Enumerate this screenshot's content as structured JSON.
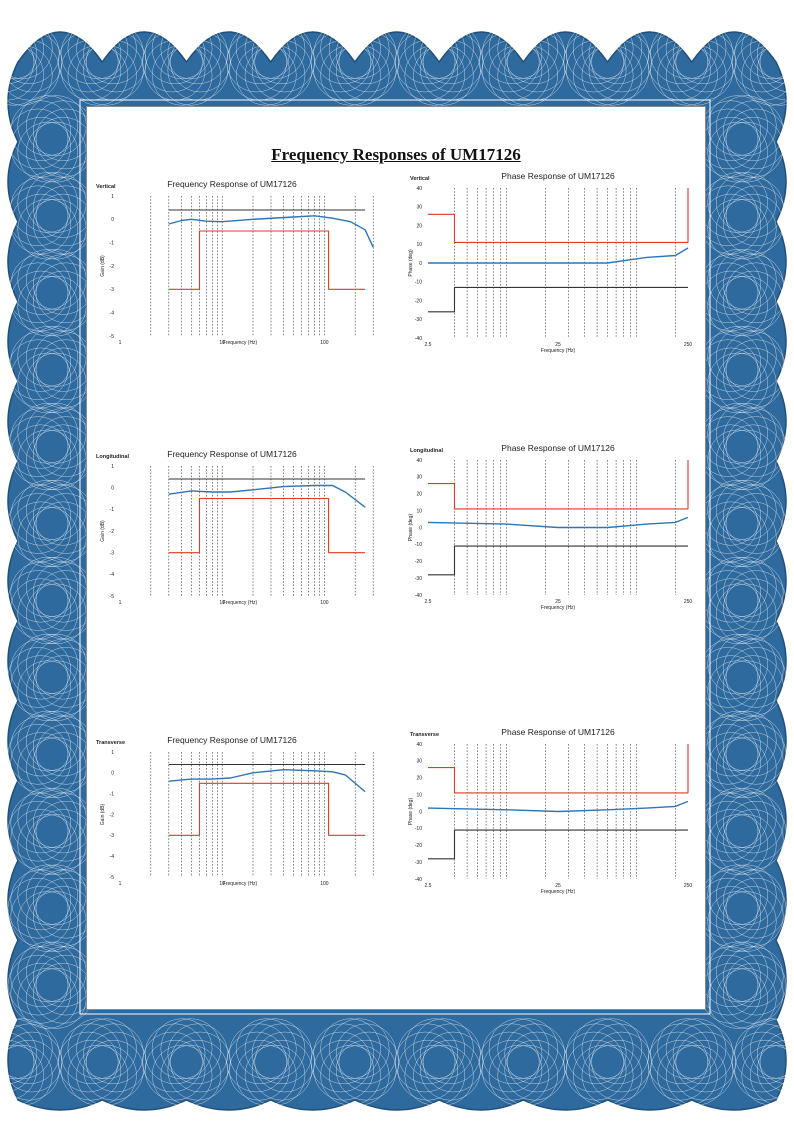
{
  "document": {
    "title": "Frequency Responses of UM17126",
    "footer_note": "",
    "colors": {
      "border": "#2f6a9e",
      "guilloche": "#ffffff",
      "measured": "#2e75b6",
      "upper_limit": "#e03a24",
      "lower_limit": "#333333"
    }
  },
  "chart_data": [
    {
      "type": "line",
      "orientation": "Vertical",
      "title": "Frequency Response of UM17126",
      "xlabel": "Frequency (Hz)",
      "ylabel": "Gain (dB)",
      "xscale": "log",
      "xlim": [
        1,
        350
      ],
      "ylim": [
        -5,
        1
      ],
      "xticks": [
        1,
        10,
        100
      ],
      "yticks": [
        1,
        0,
        -1,
        -2,
        -3,
        -4,
        -5
      ],
      "grid": "vertical dashed lines at 1-2-3...-9 decade steps",
      "series": [
        {
          "color": "#2e75b6",
          "x": [
            3,
            4,
            5,
            7,
            10,
            20,
            50,
            80,
            120,
            180,
            250,
            300
          ],
          "y": [
            -0.2,
            -0.05,
            0.0,
            -0.08,
            -0.1,
            0.0,
            0.1,
            0.15,
            0.05,
            -0.1,
            -0.45,
            -1.2
          ]
        },
        {
          "color": "#333333",
          "x": [
            3,
            250
          ],
          "y": [
            0.4,
            0.4
          ]
        },
        {
          "color": "#e03a24",
          "x": [
            3,
            6,
            6,
            110,
            110,
            250
          ],
          "y": [
            -3,
            -3,
            -0.5,
            -0.5,
            -3,
            -3
          ]
        }
      ]
    },
    {
      "type": "line",
      "orientation": "Vertical",
      "title": "Phase Response of UM17126",
      "xlabel": "Frequency (Hz)",
      "ylabel": "Phase (deg)",
      "xscale": "log",
      "xlim": [
        2.5,
        250
      ],
      "ylim": [
        -40,
        40
      ],
      "xticks": [
        2.5,
        25,
        250
      ],
      "yticks": [
        40,
        30,
        20,
        10,
        0,
        -10,
        -20,
        -30,
        -40
      ],
      "grid": "vertical dashed lines at 1-2-3...-9 decade steps",
      "series": [
        {
          "color": "#2e75b6",
          "x": [
            2.5,
            10,
            25,
            60,
            120,
            200,
            250
          ],
          "y": [
            0,
            0,
            0,
            0,
            3,
            4,
            8
          ]
        },
        {
          "color": "#e03a24",
          "x": [
            2.5,
            4,
            4,
            250,
            250
          ],
          "y": [
            26,
            26,
            11,
            11,
            40
          ]
        },
        {
          "color": "#333333",
          "x": [
            2.5,
            4,
            4,
            250
          ],
          "y": [
            -26,
            -26,
            -13,
            -13
          ]
        }
      ]
    },
    {
      "type": "line",
      "orientation": "Longitudinal",
      "title": "Frequency Response of UM17126",
      "xlabel": "Frequency (Hz)",
      "ylabel": "Gain (dB)",
      "xscale": "log",
      "xlim": [
        1,
        350
      ],
      "ylim": [
        -5,
        1
      ],
      "xticks": [
        1,
        10,
        100
      ],
      "yticks": [
        1,
        0,
        -1,
        -2,
        -3,
        -4,
        -5
      ],
      "grid": "vertical dashed lines at 1-2-3...-9 decade steps",
      "series": [
        {
          "color": "#2e75b6",
          "x": [
            3,
            5,
            8,
            12,
            20,
            40,
            80,
            120,
            160,
            250
          ],
          "y": [
            -0.3,
            -0.15,
            -0.2,
            -0.2,
            -0.1,
            0.05,
            0.1,
            0.1,
            -0.2,
            -0.9
          ]
        },
        {
          "color": "#333333",
          "x": [
            3,
            250
          ],
          "y": [
            0.4,
            0.4
          ]
        },
        {
          "color": "#e03a24",
          "x": [
            3,
            6,
            6,
            110,
            110,
            250
          ],
          "y": [
            -3,
            -3,
            -0.5,
            -0.5,
            -3,
            -3
          ]
        }
      ]
    },
    {
      "type": "line",
      "orientation": "Longitudinal",
      "title": "Phase Response of UM17126",
      "xlabel": "Frequency (Hz)",
      "ylabel": "Phase (deg)",
      "xscale": "log",
      "xlim": [
        2.5,
        250
      ],
      "ylim": [
        -40,
        40
      ],
      "xticks": [
        2.5,
        25,
        250
      ],
      "yticks": [
        40,
        30,
        20,
        10,
        0,
        -10,
        -20,
        -30,
        -40
      ],
      "grid": "vertical dashed lines at 1-2-3...-9 decade steps",
      "series": [
        {
          "color": "#2e75b6",
          "x": [
            2.5,
            10,
            25,
            60,
            120,
            200,
            250
          ],
          "y": [
            3,
            2,
            0,
            0,
            2,
            3,
            6
          ]
        },
        {
          "color": "#e03a24",
          "x": [
            2.5,
            4,
            4,
            250,
            250
          ],
          "y": [
            26,
            26,
            11,
            11,
            40
          ]
        },
        {
          "color": "#333333",
          "x": [
            2.5,
            4,
            4,
            250
          ],
          "y": [
            -28,
            -28,
            -11,
            -11
          ]
        }
      ]
    },
    {
      "type": "line",
      "orientation": "Transverse",
      "title": "Frequency Response of UM17126",
      "xlabel": "Frequency (Hz)",
      "ylabel": "Gain (dB)",
      "xscale": "log",
      "xlim": [
        1,
        350
      ],
      "ylim": [
        -5,
        1
      ],
      "xticks": [
        1,
        10,
        100
      ],
      "yticks": [
        1,
        0,
        -1,
        -2,
        -3,
        -4,
        -5
      ],
      "grid": "vertical dashed lines at 1-2-3...-9 decade steps",
      "series": [
        {
          "color": "#2e75b6",
          "x": [
            3,
            5,
            8,
            12,
            20,
            40,
            80,
            120,
            160,
            250
          ],
          "y": [
            -0.4,
            -0.3,
            -0.3,
            -0.25,
            0.0,
            0.15,
            0.1,
            0.05,
            -0.1,
            -0.9
          ]
        },
        {
          "color": "#333333",
          "x": [
            3,
            250
          ],
          "y": [
            0.4,
            0.4
          ]
        },
        {
          "color": "#e03a24",
          "x": [
            3,
            6,
            6,
            110,
            110,
            250
          ],
          "y": [
            -3,
            -3,
            -0.5,
            -0.5,
            -3,
            -3
          ]
        }
      ]
    },
    {
      "type": "line",
      "orientation": "Transverse",
      "title": "Phase Response of UM17126",
      "xlabel": "Frequency (Hz)",
      "ylabel": "Phase (deg)",
      "xscale": "log",
      "xlim": [
        2.5,
        250
      ],
      "ylim": [
        -40,
        40
      ],
      "xticks": [
        2.5,
        25,
        250
      ],
      "yticks": [
        40,
        30,
        20,
        10,
        0,
        -10,
        -20,
        -30,
        -40
      ],
      "grid": "vertical dashed lines at 1-2-3...-9 decade steps",
      "series": [
        {
          "color": "#2e75b6",
          "x": [
            2.5,
            10,
            25,
            60,
            120,
            200,
            250
          ],
          "y": [
            2,
            1,
            0,
            1,
            2,
            3,
            6
          ]
        },
        {
          "color": "#e03a24",
          "x": [
            2.5,
            4,
            4,
            250,
            250
          ],
          "y": [
            26,
            26,
            11,
            11,
            40
          ]
        },
        {
          "color": "#333333",
          "x": [
            2.5,
            4,
            4,
            250
          ],
          "y": [
            -28,
            -28,
            -11,
            -11
          ]
        }
      ]
    }
  ]
}
